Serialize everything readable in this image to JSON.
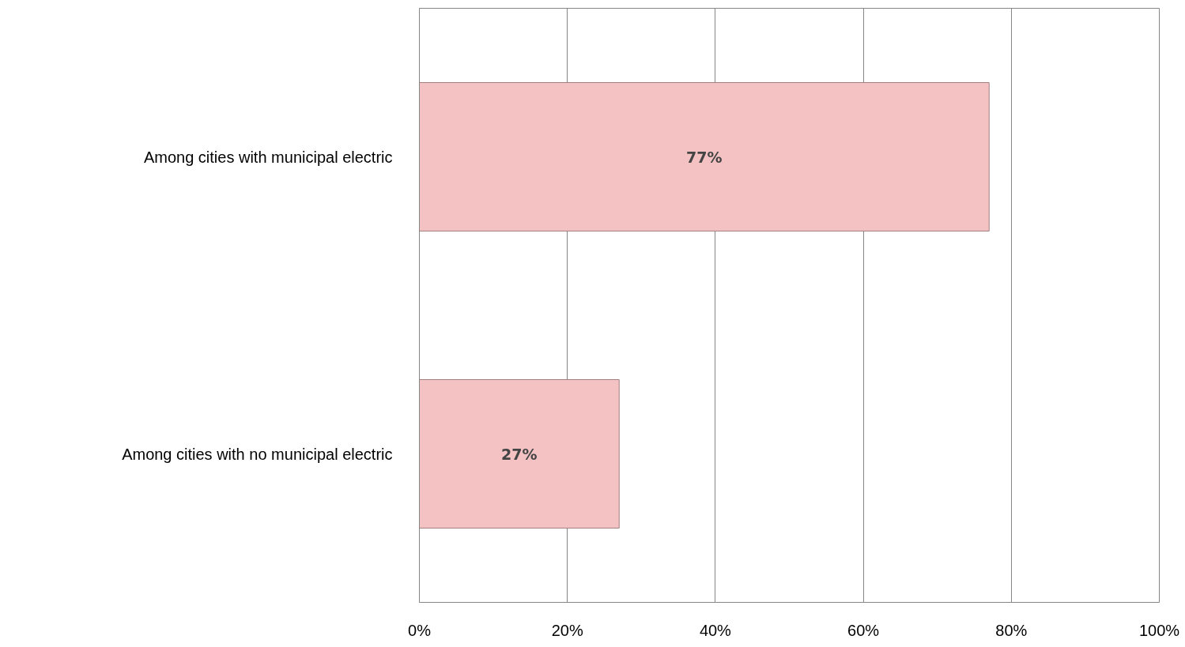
{
  "chart_data": {
    "type": "bar",
    "orientation": "horizontal",
    "categories": [
      "Among cities with municipal electric",
      "Among cities with no municipal electric"
    ],
    "values": [
      77,
      27
    ],
    "value_labels": [
      "77%",
      "27%"
    ],
    "color": "#f4c2c2",
    "xlim": [
      0,
      100
    ],
    "xticks": [
      {
        "value": 0,
        "label": "0%"
      },
      {
        "value": 20,
        "label": "20%"
      },
      {
        "value": 40,
        "label": "40%"
      },
      {
        "value": 60,
        "label": "60%"
      },
      {
        "value": 80,
        "label": "80%"
      },
      {
        "value": 100,
        "label": "100%"
      }
    ],
    "grid": "x"
  }
}
